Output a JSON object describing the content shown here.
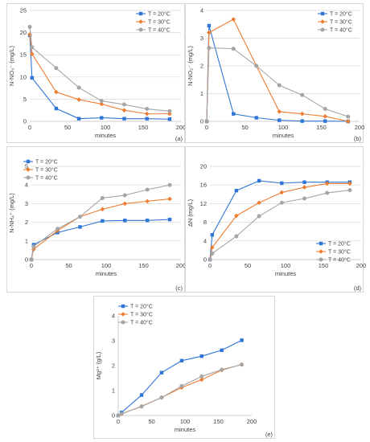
{
  "colors": {
    "T20": "#2e75d6",
    "T30": "#ed7d31",
    "T40": "#a5a5a5"
  },
  "chart_data": [
    {
      "id": "a",
      "type": "line",
      "ylabel": "N-NO₃⁻ (mg/L)",
      "xlabel": "minutes",
      "panel_label": "(a)",
      "xlim": [
        0,
        200
      ],
      "xticks": [
        0,
        50,
        100,
        150,
        200
      ],
      "ylim": [
        0,
        25
      ],
      "yticks": [
        0,
        5,
        10,
        15,
        20,
        25
      ],
      "legend_position": "top-right",
      "grid": "horizontal",
      "series": [
        {
          "name": "T = 20°C",
          "marker": "square",
          "color": "#2e75d6",
          "x": [
            0,
            3,
            35,
            65,
            95,
            125,
            155,
            185
          ],
          "y": [
            19.4,
            9.8,
            2.9,
            0.6,
            0.8,
            0.6,
            0.6,
            0.5
          ]
        },
        {
          "name": "T = 30°C",
          "marker": "diamond",
          "color": "#ed7d31",
          "x": [
            0,
            3,
            35,
            65,
            95,
            125,
            155,
            185
          ],
          "y": [
            19.6,
            15.2,
            6.6,
            4.9,
            3.9,
            2.5,
            1.7,
            1.7
          ]
        },
        {
          "name": "T = 40°C",
          "marker": "circle",
          "color": "#a5a5a5",
          "x": [
            0,
            3,
            35,
            65,
            95,
            125,
            155,
            185
          ],
          "y": [
            21.3,
            16.7,
            12.0,
            7.6,
            4.6,
            3.8,
            2.8,
            2.3
          ]
        }
      ]
    },
    {
      "id": "b",
      "type": "line",
      "ylabel": "N-NO₂⁻ (mg/L)",
      "xlabel": "minutes",
      "panel_label": "(b)",
      "xlim": [
        0,
        200
      ],
      "xticks": [
        0,
        50,
        100,
        150,
        200
      ],
      "ylim": [
        0,
        4
      ],
      "yticks": [
        0,
        1,
        2,
        3,
        4
      ],
      "legend_position": "top-right",
      "grid": "horizontal",
      "series": [
        {
          "name": "T = 20°C",
          "marker": "square",
          "color": "#2e75d6",
          "x": [
            0,
            3,
            35,
            65,
            95,
            125,
            155,
            185
          ],
          "y": [
            0,
            3.45,
            0.27,
            0.13,
            0.04,
            0.01,
            0.01,
            0.0
          ]
        },
        {
          "name": "T = 30°C",
          "marker": "diamond",
          "color": "#ed7d31",
          "x": [
            0,
            3,
            35,
            65,
            95,
            125,
            155,
            185
          ],
          "y": [
            0,
            3.2,
            3.68,
            2.0,
            0.35,
            0.27,
            0.18,
            0.0
          ]
        },
        {
          "name": "T = 40°C",
          "marker": "circle",
          "color": "#a5a5a5",
          "x": [
            0,
            3,
            35,
            65,
            95,
            125,
            155,
            185
          ],
          "y": [
            0,
            2.65,
            2.62,
            2.0,
            1.3,
            0.95,
            0.45,
            0.17
          ]
        }
      ]
    },
    {
      "id": "c",
      "type": "line",
      "ylabel": "N-NH₄⁺ (mg/L)",
      "xlabel": "minutes",
      "panel_label": "(c)",
      "xlim": [
        0,
        200
      ],
      "xticks": [
        0,
        50,
        100,
        150,
        200
      ],
      "ylim": [
        0,
        5
      ],
      "yticks": [
        0,
        1,
        2,
        3,
        4,
        5
      ],
      "legend_position": "top-left",
      "grid": "horizontal",
      "series": [
        {
          "name": "T = 20°C",
          "marker": "square",
          "color": "#2e75d6",
          "x": [
            0,
            3,
            35,
            65,
            95,
            125,
            155,
            185
          ],
          "y": [
            0,
            0.8,
            1.45,
            1.75,
            2.07,
            2.1,
            2.1,
            2.15
          ]
        },
        {
          "name": "T = 30°C",
          "marker": "diamond",
          "color": "#ed7d31",
          "x": [
            0,
            3,
            35,
            65,
            95,
            125,
            155,
            185
          ],
          "y": [
            0,
            0.55,
            1.55,
            2.3,
            2.7,
            3.0,
            3.13,
            3.25
          ]
        },
        {
          "name": "T = 40°C",
          "marker": "circle",
          "color": "#a5a5a5",
          "x": [
            0,
            3,
            35,
            65,
            95,
            125,
            155,
            185
          ],
          "y": [
            0,
            0.7,
            1.65,
            2.3,
            3.3,
            3.45,
            3.75,
            4.0
          ]
        }
      ]
    },
    {
      "id": "d",
      "type": "line",
      "ylabel": "ΔN (mg/L)",
      "xlabel": "minutes",
      "panel_label": "(d)",
      "xlim": [
        0,
        200
      ],
      "xticks": [
        0,
        50,
        100,
        150,
        200
      ],
      "ylim": [
        0,
        20
      ],
      "yticks": [
        0,
        4,
        8,
        12,
        16,
        20
      ],
      "legend_position": "bottom-right",
      "grid": "horizontal",
      "series": [
        {
          "name": "T = 20°C",
          "marker": "square",
          "color": "#2e75d6",
          "x": [
            0,
            3,
            35,
            65,
            95,
            125,
            155,
            185
          ],
          "y": [
            0,
            5.3,
            14.8,
            16.9,
            16.4,
            16.6,
            16.6,
            16.6
          ]
        },
        {
          "name": "T = 30°C",
          "marker": "diamond",
          "color": "#ed7d31",
          "x": [
            0,
            3,
            35,
            65,
            95,
            125,
            155,
            185
          ],
          "y": [
            0,
            2.6,
            9.4,
            12.2,
            14.4,
            15.5,
            16.3,
            16.3
          ]
        },
        {
          "name": "T = 40°C",
          "marker": "circle",
          "color": "#a5a5a5",
          "x": [
            0,
            3,
            35,
            65,
            95,
            125,
            155,
            185
          ],
          "y": [
            0,
            1.3,
            5.0,
            9.3,
            12.2,
            13.1,
            14.3,
            14.9
          ]
        }
      ]
    },
    {
      "id": "e",
      "type": "line",
      "ylabel": "Mg²⁺ (g/L)",
      "xlabel": "minutes",
      "panel_label": "(e)",
      "xlim": [
        0,
        200
      ],
      "xticks": [
        0,
        50,
        100,
        150,
        200
      ],
      "ylim": [
        0,
        4
      ],
      "yticks": [
        0,
        1,
        2,
        3,
        4
      ],
      "legend_position": "top-left",
      "grid": "none",
      "series": [
        {
          "name": "T = 20°C",
          "marker": "square",
          "color": "#2e75d6",
          "x": [
            0,
            5,
            35,
            65,
            95,
            125,
            155,
            185
          ],
          "y": [
            0,
            0.12,
            0.82,
            1.72,
            2.2,
            2.38,
            2.62,
            3.02
          ]
        },
        {
          "name": "T = 30°C",
          "marker": "diamond",
          "color": "#ed7d31",
          "x": [
            0,
            5,
            35,
            65,
            95,
            125,
            155,
            185
          ],
          "y": [
            0,
            0.06,
            0.37,
            0.72,
            1.12,
            1.44,
            1.82,
            2.05
          ]
        },
        {
          "name": "T = 40°C",
          "marker": "circle",
          "color": "#a5a5a5",
          "x": [
            0,
            5,
            35,
            65,
            95,
            125,
            155,
            185
          ],
          "y": [
            0,
            0.07,
            0.36,
            0.72,
            1.18,
            1.57,
            1.84,
            2.04
          ]
        }
      ]
    }
  ]
}
